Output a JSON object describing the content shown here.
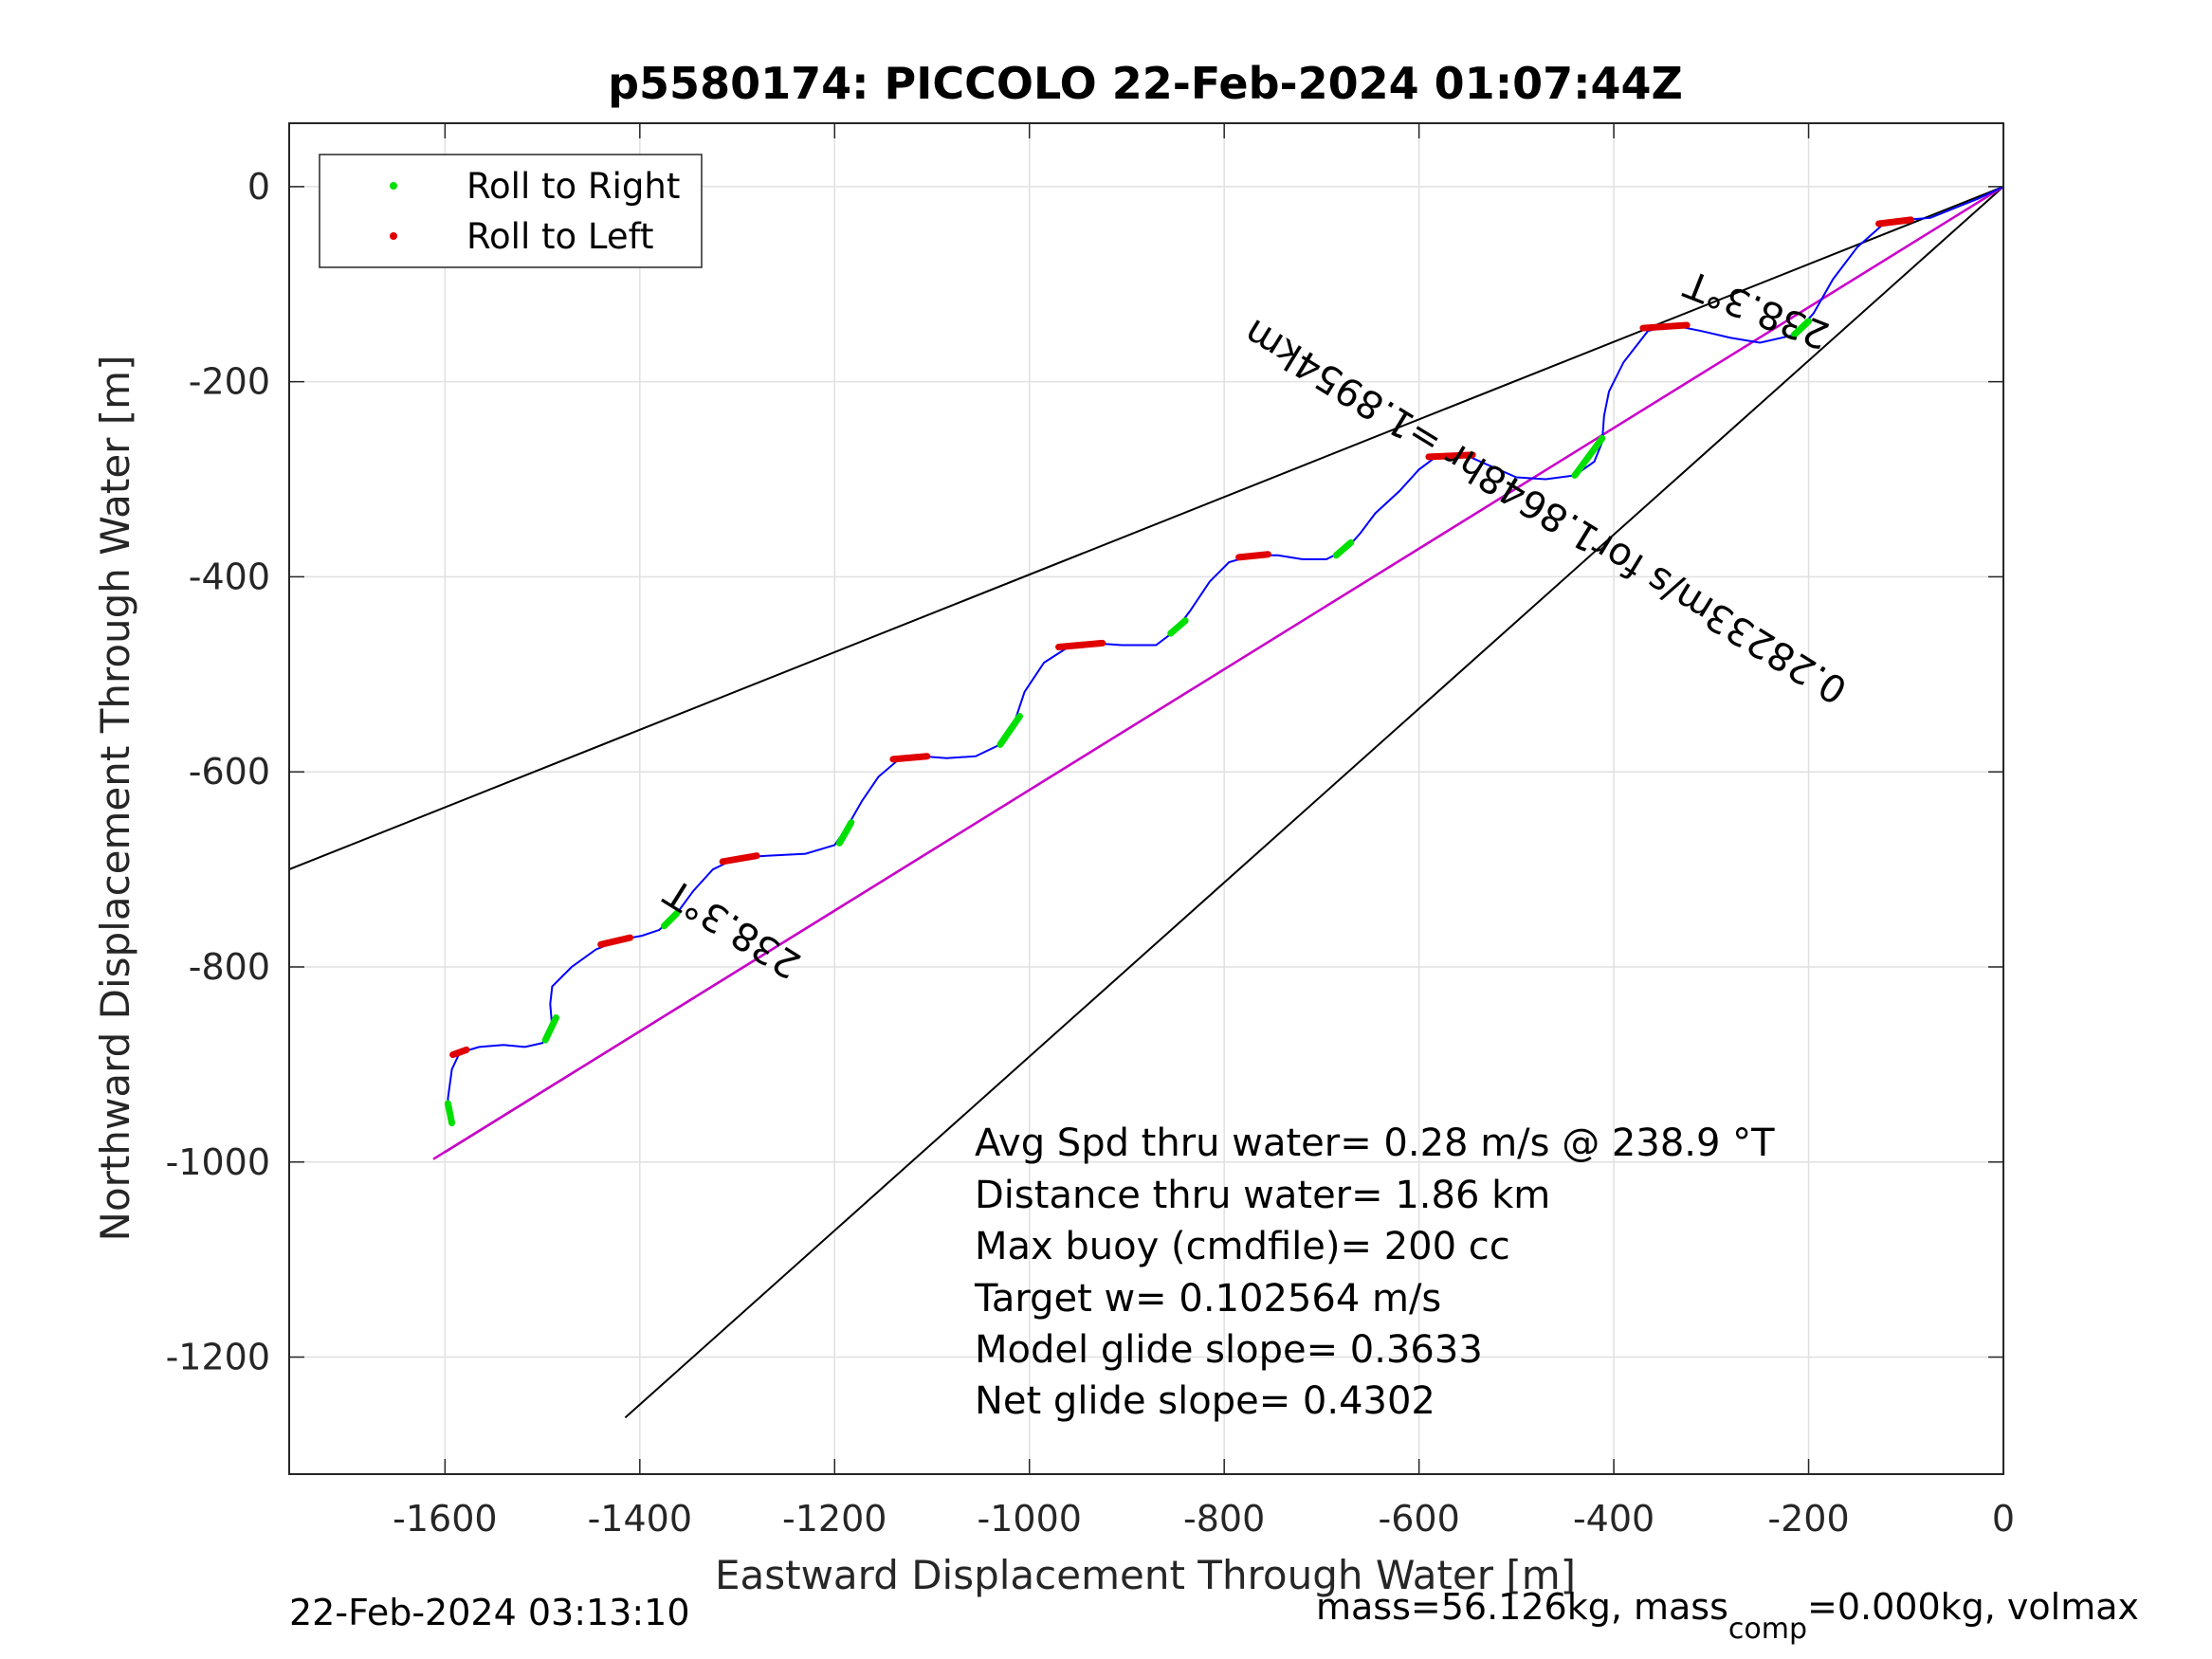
{
  "title": "p5580174: PICCOLO 22-Feb-2024 01:07:44Z",
  "footer": {
    "timestamp": "22-Feb-2024 03:13:10",
    "mass_prefix": "mass=56.126kg, mass",
    "mass_sub": "comp",
    "mass_suffix": "=0.000kg, volmax"
  },
  "stats": [
    "Avg Spd thru water=  0.28 m/s @ 238.9 °T",
    "Distance thru water=  1.86 km",
    "Max buoy (cmdfile)= 200 cc",
    "Target w= 0.102564 m/s",
    "Model glide slope= 0.3633",
    "Net glide slope= 0.4302"
  ],
  "annotations": {
    "heading_upper": "238.3°T",
    "heading_lower": "238.3°T",
    "speed_line": "0.28233m/s for1.8648hr =1.8954km"
  },
  "colors": {
    "track": "#0000ff",
    "roll_right": "#00e000",
    "roll_left": "#e00000",
    "net_line": "#cc00cc",
    "guide": "#000000",
    "grid": "#e0e0e0"
  },
  "chart_data": {
    "type": "line",
    "title": "p5580174: PICCOLO 22-Feb-2024 01:07:44Z",
    "xlabel": "Eastward Displacement Through Water [m]",
    "ylabel": "Northward Displacement Through Water [m]",
    "xlim": [
      -1760,
      0
    ],
    "ylim": [
      -1320,
      65
    ],
    "xticks": [
      -1600,
      -1400,
      -1200,
      -1000,
      -800,
      -600,
      -400,
      -200,
      0
    ],
    "yticks": [
      0,
      -200,
      -400,
      -600,
      -800,
      -1000,
      -1200
    ],
    "grid": true,
    "legend": {
      "position": "top-left",
      "entries": [
        "Roll to Right",
        "Roll to Left"
      ]
    },
    "track": [
      [
        -1595,
        -960
      ],
      [
        -1597,
        -935
      ],
      [
        -1593,
        -905
      ],
      [
        -1585,
        -888
      ],
      [
        -1565,
        -882
      ],
      [
        -1540,
        -880
      ],
      [
        -1518,
        -882
      ],
      [
        -1500,
        -878
      ],
      [
        -1490,
        -862
      ],
      [
        -1492,
        -838
      ],
      [
        -1490,
        -820
      ],
      [
        -1470,
        -800
      ],
      [
        -1445,
        -782
      ],
      [
        -1420,
        -772
      ],
      [
        -1398,
        -768
      ],
      [
        -1380,
        -762
      ],
      [
        -1362,
        -745
      ],
      [
        -1345,
        -722
      ],
      [
        -1325,
        -700
      ],
      [
        -1300,
        -688
      ],
      [
        -1270,
        -686
      ],
      [
        -1230,
        -684
      ],
      [
        -1200,
        -675
      ],
      [
        -1188,
        -658
      ],
      [
        -1172,
        -630
      ],
      [
        -1155,
        -605
      ],
      [
        -1135,
        -588
      ],
      [
        -1110,
        -584
      ],
      [
        -1085,
        -586
      ],
      [
        -1055,
        -584
      ],
      [
        -1030,
        -572
      ],
      [
        -1015,
        -548
      ],
      [
        -1005,
        -518
      ],
      [
        -985,
        -488
      ],
      [
        -960,
        -472
      ],
      [
        -935,
        -468
      ],
      [
        -905,
        -470
      ],
      [
        -870,
        -470
      ],
      [
        -850,
        -455
      ],
      [
        -835,
        -435
      ],
      [
        -815,
        -405
      ],
      [
        -795,
        -385
      ],
      [
        -770,
        -378
      ],
      [
        -745,
        -378
      ],
      [
        -720,
        -382
      ],
      [
        -695,
        -382
      ],
      [
        -675,
        -372
      ],
      [
        -660,
        -355
      ],
      [
        -645,
        -335
      ],
      [
        -620,
        -312
      ],
      [
        -600,
        -290
      ],
      [
        -580,
        -275
      ],
      [
        -555,
        -274
      ],
      [
        -530,
        -285
      ],
      [
        -500,
        -298
      ],
      [
        -470,
        -300
      ],
      [
        -440,
        -296
      ],
      [
        -420,
        -282
      ],
      [
        -412,
        -262
      ],
      [
        -410,
        -235
      ],
      [
        -405,
        -210
      ],
      [
        -390,
        -180
      ],
      [
        -365,
        -148
      ],
      [
        -340,
        -142
      ],
      [
        -310,
        -148
      ],
      [
        -280,
        -155
      ],
      [
        -250,
        -160
      ],
      [
        -215,
        -152
      ],
      [
        -195,
        -130
      ],
      [
        -175,
        -95
      ],
      [
        -150,
        -62
      ],
      [
        -125,
        -40
      ],
      [
        -100,
        -34
      ],
      [
        -75,
        -32
      ],
      [
        -50,
        -22
      ],
      [
        -25,
        -12
      ],
      [
        0,
        0
      ]
    ],
    "roll_right": [
      {
        "x": [
          -1597,
          -1593
        ],
        "y": [
          -940,
          -960
        ]
      },
      {
        "x": [
          -1497,
          -1486
        ],
        "y": [
          -875,
          -852
        ]
      },
      {
        "x": [
          -1375,
          -1362
        ],
        "y": [
          -758,
          -745
        ]
      },
      {
        "x": [
          -1195,
          -1183
        ],
        "y": [
          -673,
          -652
        ]
      },
      {
        "x": [
          -1030,
          -1010
        ],
        "y": [
          -572,
          -543
        ]
      },
      {
        "x": [
          -855,
          -840
        ],
        "y": [
          -458,
          -445
        ]
      },
      {
        "x": [
          -685,
          -670
        ],
        "y": [
          -378,
          -365
        ]
      },
      {
        "x": [
          -440,
          -412
        ],
        "y": [
          -296,
          -258
        ]
      },
      {
        "x": [
          -215,
          -200
        ],
        "y": [
          -152,
          -138
        ]
      }
    ],
    "roll_left": [
      {
        "x": [
          -1592,
          -1578
        ],
        "y": [
          -890,
          -885
        ]
      },
      {
        "x": [
          -1440,
          -1410
        ],
        "y": [
          -777,
          -770
        ]
      },
      {
        "x": [
          -1315,
          -1280
        ],
        "y": [
          -692,
          -686
        ]
      },
      {
        "x": [
          -1140,
          -1105
        ],
        "y": [
          -587,
          -584
        ]
      },
      {
        "x": [
          -970,
          -925
        ],
        "y": [
          -472,
          -468
        ]
      },
      {
        "x": [
          -785,
          -755
        ],
        "y": [
          -380,
          -377
        ]
      },
      {
        "x": [
          -590,
          -545
        ],
        "y": [
          -277,
          -275
        ]
      },
      {
        "x": [
          -370,
          -325
        ],
        "y": [
          -145,
          -142
        ]
      },
      {
        "x": [
          -128,
          -95
        ],
        "y": [
          -38,
          -34
        ]
      }
    ],
    "net_line": {
      "x": [
        -1612,
        0
      ],
      "y": [
        -997,
        0
      ]
    },
    "guide_lines": [
      {
        "x": [
          -1760,
          0
        ],
        "y": [
          -700,
          0
        ]
      },
      {
        "x": [
          -1600,
          0
        ],
        "y": [
          -990,
          0
        ]
      },
      {
        "x": [
          -1415,
          0
        ],
        "y": [
          -1262,
          0
        ]
      }
    ]
  }
}
